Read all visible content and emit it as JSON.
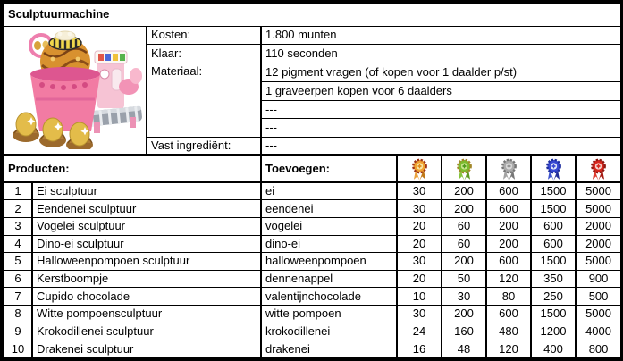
{
  "title": "Sculptuurmachine",
  "colors": {
    "header_bg": "#bfbfbf",
    "border": "#000000"
  },
  "info": {
    "rows": [
      {
        "label": "Kosten:",
        "value": "1.800 munten"
      },
      {
        "label": "Klaar:",
        "value": "110 seconden"
      },
      {
        "label": "Materiaal:",
        "value": "12 pigment vragen (of kopen voor 1 daalder p/st)"
      },
      {
        "label": "",
        "value": "1 graveerpen kopen voor 6 daalders"
      },
      {
        "label": "",
        "value": "---"
      },
      {
        "label": "",
        "value": "---"
      },
      {
        "label": "Vast ingrediënt:",
        "value": "---"
      }
    ]
  },
  "products_header": {
    "col_products": "Producten:",
    "col_add": "Toevoegen:"
  },
  "medals": [
    {
      "name": "orange-medal",
      "rim": "#9e3417",
      "main": "#f0a231",
      "inner": "#f7e7a6",
      "spoke": "#e08a1e",
      "ribbon": "#eaa23b",
      "ribbon_dark": "#c07818"
    },
    {
      "name": "green-medal",
      "rim": "#a3872a",
      "main": "#7cbb2e",
      "inner": "#c8e48e",
      "spoke": "#4f9a1d",
      "ribbon": "#86c43c",
      "ribbon_dark": "#5e9a22"
    },
    {
      "name": "silver-medal",
      "rim": "#767676",
      "main": "#ababab",
      "inner": "#d9d9d9",
      "spoke": "#8f8f8f",
      "ribbon": "#a3a3a3",
      "ribbon_dark": "#787878"
    },
    {
      "name": "blue-medal",
      "rim": "#1e2e9e",
      "main": "#3748d2",
      "inner": "#dfe5f8",
      "spoke": "#3748d2",
      "ribbon": "#3d53cc",
      "ribbon_dark": "#232f9a"
    },
    {
      "name": "red-medal",
      "rim": "#8e1912",
      "main": "#d8261d",
      "inner": "#f3d3cc",
      "spoke": "#d8261d",
      "ribbon": "#de3a2e",
      "ribbon_dark": "#a61b12"
    }
  ],
  "products": [
    {
      "nr": 1,
      "name": "Ei sculptuur",
      "ingredient": "ei",
      "values": [
        30,
        200,
        600,
        1500,
        5000
      ]
    },
    {
      "nr": 2,
      "name": "Eendenei sculptuur",
      "ingredient": "eendenei",
      "values": [
        30,
        200,
        600,
        1500,
        5000
      ]
    },
    {
      "nr": 3,
      "name": "Vogelei sculptuur",
      "ingredient": "vogelei",
      "values": [
        20,
        60,
        200,
        600,
        2000
      ]
    },
    {
      "nr": 4,
      "name": "Dino-ei sculptuur",
      "ingredient": "dino-ei",
      "values": [
        20,
        60,
        200,
        600,
        2000
      ]
    },
    {
      "nr": 5,
      "name": "Halloweenpompoen sculptuur",
      "ingredient": "halloweenpompoen",
      "values": [
        30,
        200,
        600,
        1500,
        5000
      ]
    },
    {
      "nr": 6,
      "name": "Kerstboompje",
      "ingredient": "dennenappel",
      "values": [
        20,
        50,
        120,
        350,
        900
      ]
    },
    {
      "nr": 7,
      "name": "Cupido chocolade",
      "ingredient": "valentijnchocolade",
      "values": [
        10,
        30,
        80,
        250,
        500
      ]
    },
    {
      "nr": 8,
      "name": "Witte pompoensculptuur",
      "ingredient": "witte pompoen",
      "values": [
        30,
        200,
        600,
        1500,
        5000
      ]
    },
    {
      "nr": 9,
      "name": "Krokodillenei sculptuur",
      "ingredient": "krokodillenei",
      "values": [
        24,
        160,
        480,
        1200,
        4000
      ]
    },
    {
      "nr": 10,
      "name": "Drakenei sculptuur",
      "ingredient": "drakenei",
      "values": [
        16,
        48,
        120,
        400,
        800
      ]
    }
  ]
}
